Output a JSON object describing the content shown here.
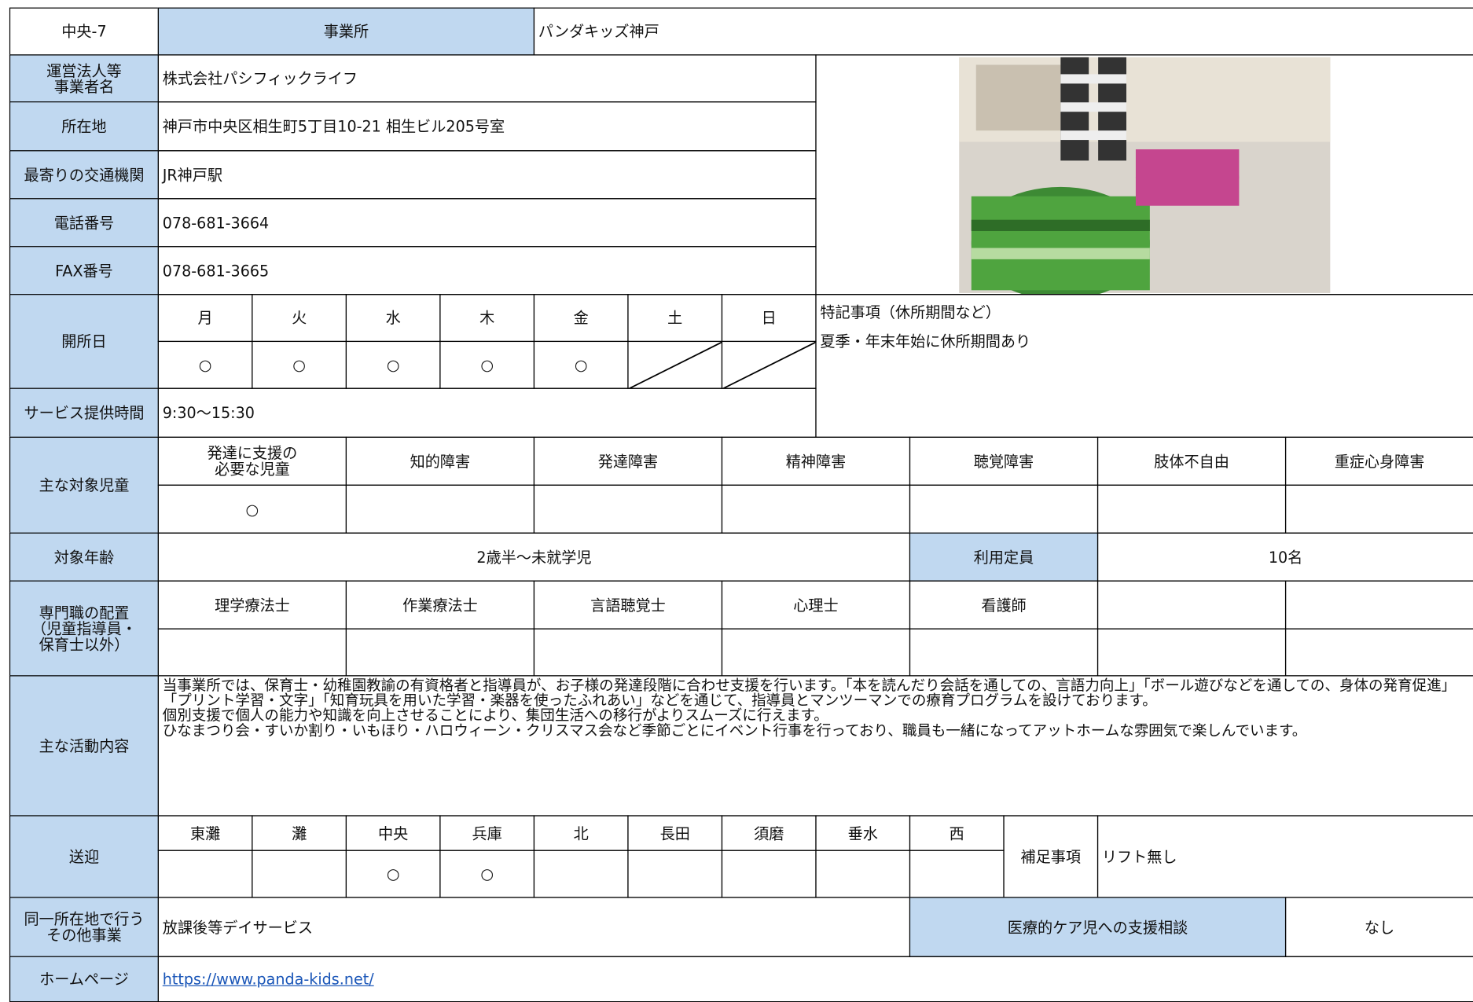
{
  "header": {
    "id": "中央-7",
    "label": "事業所",
    "name": "パンダキッズ神戸"
  },
  "operator": {
    "label": "運営法人等\n事業者名",
    "value": "株式会社パシフィックライフ"
  },
  "address": {
    "label": "所在地",
    "value": "神戸市中央区相生町5丁目10-21 相生ビル205号室"
  },
  "transit": {
    "label": "最寄りの交通機関",
    "value": "JR神戸駅"
  },
  "phone": {
    "label": "電話番号",
    "value": "078-681-3664"
  },
  "fax": {
    "label": "FAX番号",
    "value": "078-681-3665"
  },
  "open_days": {
    "label": "開所日",
    "days": [
      "月",
      "火",
      "水",
      "木",
      "金",
      "土",
      "日"
    ],
    "marks": [
      "○",
      "○",
      "○",
      "○",
      "○",
      null,
      null
    ]
  },
  "notes": {
    "title": "特記事項（休所期間など）",
    "text": "夏季・年末年始に休所期間あり"
  },
  "hours": {
    "label": "サービス提供時間",
    "value": "9:30〜15:30"
  },
  "target": {
    "label": "主な対象児童",
    "headers": [
      "発達に支援の\n必要な児童",
      "知的障害",
      "発達障害",
      "精神障害",
      "聴覚障害",
      "肢体不自由",
      "重症心身障害"
    ],
    "marks": [
      "○",
      null,
      null,
      null,
      null,
      null,
      null
    ]
  },
  "age": {
    "label": "対象年齢",
    "value": "2歳半〜未就学児",
    "capacity_label": "利用定員",
    "capacity": "10名"
  },
  "staff": {
    "label": "専門職の配置\n（児童指導員・\n保育士以外）",
    "headers": [
      "理学療法士",
      "作業療法士",
      "言語聴覚士",
      "心理士",
      "看護師"
    ]
  },
  "activities": {
    "label": "主な活動内容",
    "text": "当事業所では、保育士・幼稚園教諭の有資格者と指導員が、お子様の発達段階に合わせ支援を行います。「本を読んだり会話を通しての、言語力向上」「ボール遊びなどを通しての、身体の発育促進」「プリント学習・文字」「知育玩具を用いた学習・楽器を使ったふれあい」などを通じて、指導員とマンツーマンでの療育プログラムを設けております。\n個別支援で個人の能力や知識を向上させることにより、集団生活への移行がよりスムーズに行えます。\nひなまつり会・すいか割り・いもほり・ハロウィーン・クリスマス会など季節ごとにイベント行事を行っており、職員も一緒になってアットホームな雰囲気で楽しんでいます。"
  },
  "transport": {
    "label": "送迎",
    "areas": [
      "東灘",
      "灘",
      "中央",
      "兵庫",
      "北",
      "長田",
      "須磨",
      "垂水",
      "西"
    ],
    "marks": [
      null,
      null,
      "○",
      "○",
      null,
      null,
      null,
      null,
      null
    ],
    "note_label": "補足事項",
    "note": "リフト無し"
  },
  "other": {
    "label": "同一所在地で行う\nその他事業",
    "value": "放課後等デイサービス",
    "care_label": "医療的ケア児への支援相談",
    "care": "なし"
  },
  "homepage": {
    "label": "ホームページ",
    "url": "https://www.panda-kids.net/"
  }
}
